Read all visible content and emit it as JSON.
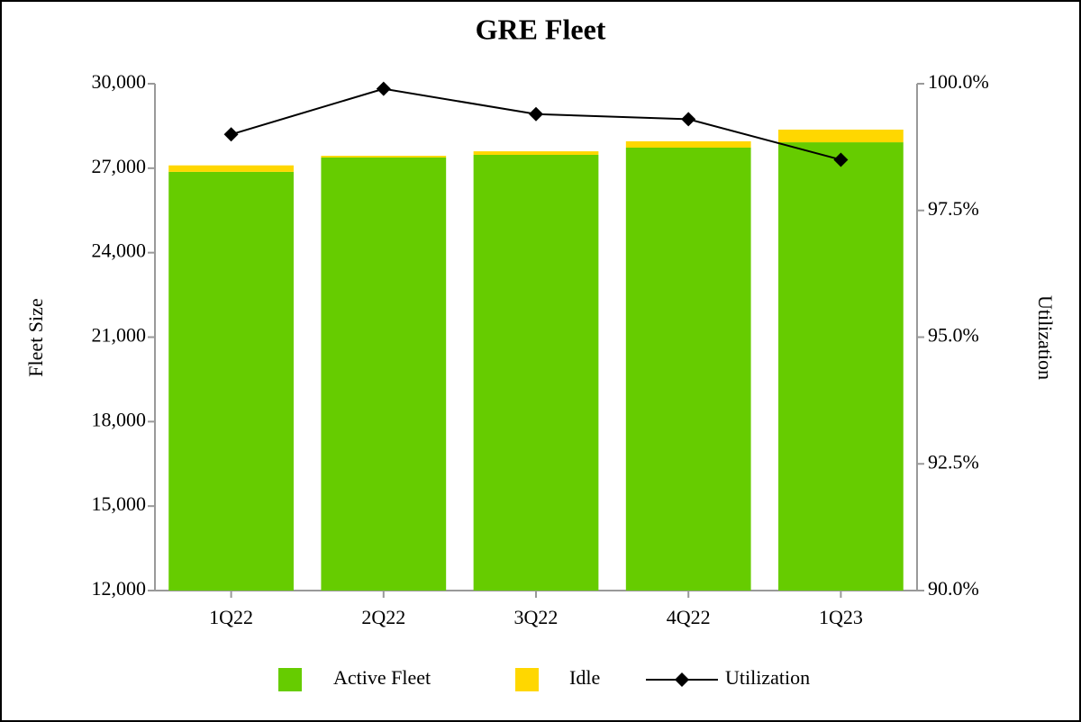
{
  "chart_data": {
    "type": "bar",
    "title": "GRE Fleet",
    "categories": [
      "1Q22",
      "2Q22",
      "3Q22",
      "4Q22",
      "1Q23"
    ],
    "series": [
      {
        "name": "Active Fleet",
        "color": "#66cc00",
        "values": [
          26870,
          27380,
          27475,
          27730,
          27920
        ]
      },
      {
        "name": "Idle",
        "color": "#ffd700",
        "values": [
          230,
          60,
          125,
          225,
          450
        ]
      },
      {
        "name": "Utilization",
        "type": "line",
        "axis": "y2",
        "color": "#000000",
        "values": [
          99.0,
          99.9,
          99.4,
          99.3,
          98.5
        ]
      }
    ],
    "stacked": true,
    "ylim": [
      12000,
      30000
    ],
    "yticks": [
      {
        "value": 12000,
        "label": "12,000"
      },
      {
        "value": 15000,
        "label": "15,000"
      },
      {
        "value": 18000,
        "label": "18,000"
      },
      {
        "value": 21000,
        "label": "21,000"
      },
      {
        "value": 24000,
        "label": "24,000"
      },
      {
        "value": 27000,
        "label": "27,000"
      },
      {
        "value": 30000,
        "label": "30,000"
      }
    ],
    "y2lim": [
      90,
      100
    ],
    "y2ticks": [
      {
        "value": 90,
        "label": "90.0%"
      },
      {
        "value": 92.5,
        "label": "92.5%"
      },
      {
        "value": 95,
        "label": "95.0%"
      },
      {
        "value": 97.5,
        "label": "97.5%"
      },
      {
        "value": 100,
        "label": "100.0%"
      }
    ],
    "ylabel": "Fleet Size",
    "y2label": "Utilization",
    "legend": "bottom"
  }
}
